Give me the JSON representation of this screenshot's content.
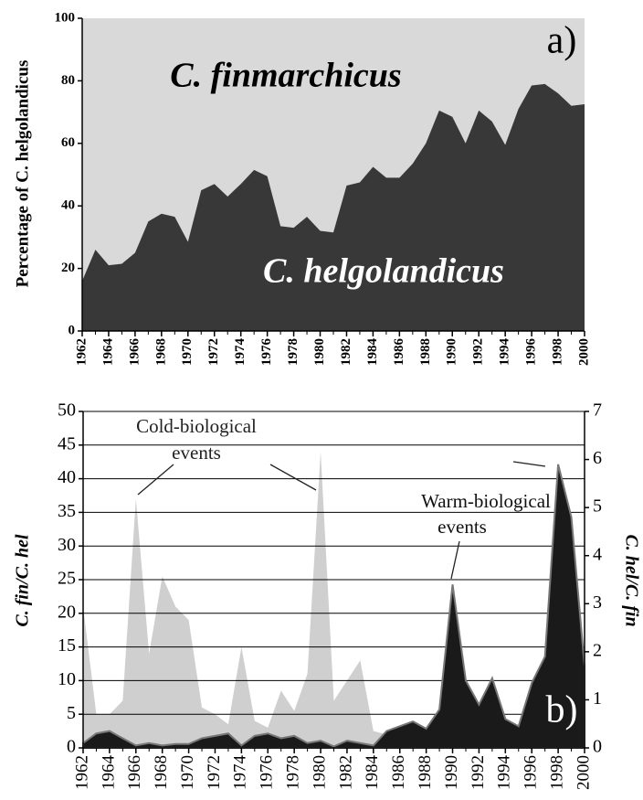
{
  "chart_data": [
    {
      "type": "area",
      "ylabel": "Percentage of C. helgolandicus",
      "annotations": [
        "C. finmarchicus",
        "C. helgolandicus",
        "a)"
      ],
      "background": "#d9d9d9",
      "x": [
        1962,
        1963,
        1964,
        1965,
        1966,
        1967,
        1968,
        1969,
        1970,
        1971,
        1972,
        1973,
        1974,
        1975,
        1976,
        1977,
        1978,
        1979,
        1980,
        1981,
        1982,
        1983,
        1984,
        1985,
        1986,
        1987,
        1988,
        1989,
        1990,
        1991,
        1992,
        1993,
        1994,
        1995,
        1996,
        1997,
        1998,
        1999,
        2000
      ],
      "series": [
        {
          "color": "#383838",
          "values": [
            16,
            26,
            21,
            21.5,
            25,
            35,
            37.5,
            36.5,
            28.5,
            45,
            47,
            43,
            47,
            51.5,
            49.5,
            33.5,
            33,
            36.5,
            32,
            31.5,
            46.5,
            47.5,
            52.5,
            49,
            49,
            53.5,
            60,
            70.5,
            68.5,
            60,
            70.5,
            67,
            59.5,
            71,
            78.5,
            79,
            76,
            72,
            72.5
          ]
        }
      ],
      "xlim": [
        1962,
        2000
      ],
      "xticks": [
        1962,
        1964,
        1966,
        1968,
        1970,
        1972,
        1974,
        1976,
        1978,
        1980,
        1982,
        1984,
        1986,
        1988,
        1990,
        1992,
        1994,
        1996,
        1998,
        2000
      ],
      "ylim": [
        0,
        100
      ],
      "yticks": [
        0,
        20,
        40,
        60,
        80,
        100
      ],
      "grid": false
    },
    {
      "type": "area",
      "ylabel": "C. fin/C. hel",
      "y2label": "C. hel/C. fin",
      "annotations": [
        "Cold-biological",
        "events",
        "Warm-biological",
        "events",
        "b)"
      ],
      "background": "#ffffff",
      "x": [
        1962,
        1963,
        1964,
        1965,
        1966,
        1967,
        1968,
        1969,
        1970,
        1971,
        1972,
        1973,
        1974,
        1975,
        1976,
        1977,
        1978,
        1979,
        1980,
        1981,
        1982,
        1983,
        1984,
        1985,
        1986,
        1987,
        1988,
        1989,
        1990,
        1991,
        1992,
        1993,
        1994,
        1995,
        1996,
        1997,
        1998,
        1999,
        2000
      ],
      "series": [
        {
          "color": "#cfcfcf",
          "values": [
            21,
            5,
            5,
            7,
            37,
            14,
            25.5,
            21,
            19,
            6,
            5,
            3.5,
            15,
            4,
            3,
            8.5,
            5.5,
            11,
            44,
            7,
            10,
            13,
            2.5,
            2,
            1.5,
            2,
            2,
            1,
            0.5,
            0.5,
            1,
            0.5,
            1.5,
            2,
            0.5,
            0.2,
            0.2,
            0.8,
            0.6
          ]
        },
        {
          "color": "#1a1a1a",
          "axis": "y2",
          "values": [
            0.1,
            0.3,
            0.35,
            0.2,
            0.05,
            0.1,
            0.05,
            0.08,
            0.08,
            0.2,
            0.25,
            0.3,
            0.05,
            0.25,
            0.3,
            0.2,
            0.25,
            0.1,
            0.15,
            0.03,
            0.15,
            0.1,
            0.05,
            0.35,
            0.45,
            0.55,
            0.4,
            0.8,
            3.4,
            1.4,
            0.9,
            1.45,
            0.6,
            0.45,
            1.35,
            1.9,
            5.9,
            4.8,
            1.7
          ]
        }
      ],
      "xlim": [
        1962,
        2000
      ],
      "xticks": [
        1962,
        1964,
        1966,
        1968,
        1970,
        1972,
        1974,
        1976,
        1978,
        1980,
        1982,
        1984,
        1986,
        1988,
        1990,
        1992,
        1994,
        1996,
        1998,
        2000
      ],
      "ylim": [
        0,
        50
      ],
      "yticks": [
        0,
        5,
        10,
        15,
        20,
        25,
        30,
        35,
        40,
        45,
        50
      ],
      "y2lim": [
        0,
        7
      ],
      "y2ticks": [
        0,
        1,
        2,
        3,
        4,
        5,
        6,
        7
      ],
      "grid": true
    }
  ]
}
